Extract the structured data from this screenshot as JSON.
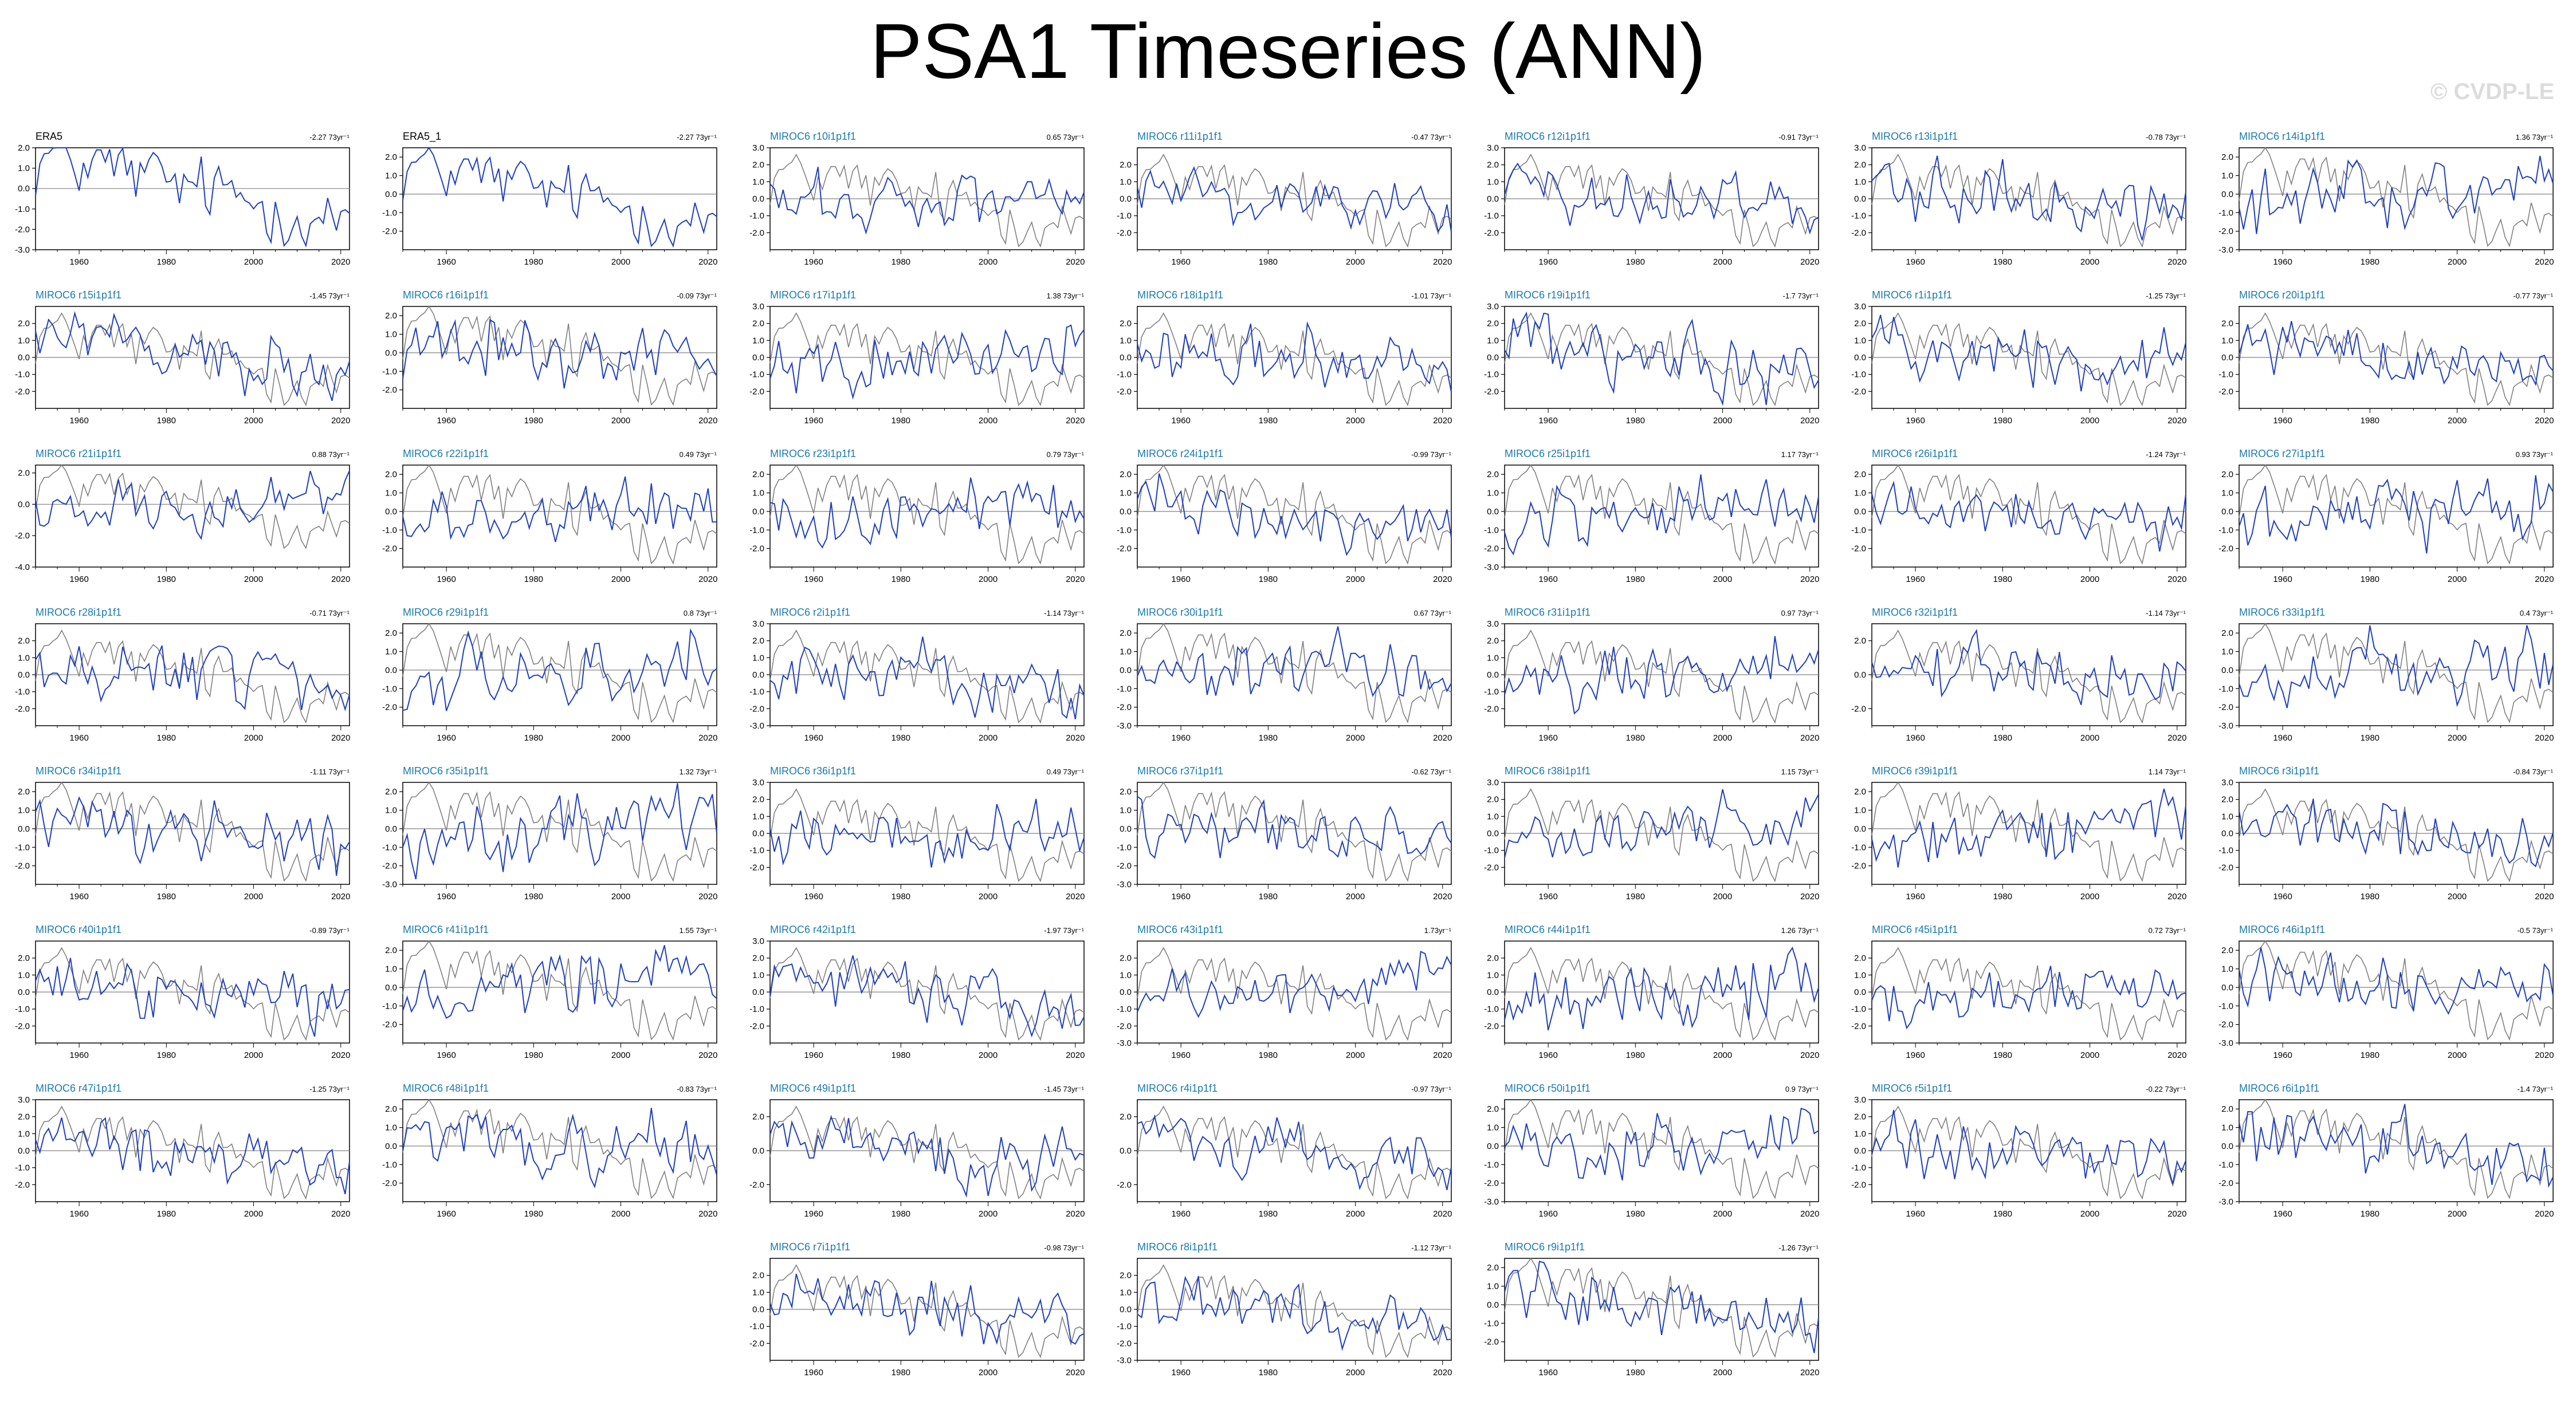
{
  "title": "PSA1 Timeseries (ANN)",
  "watermark": "© CVDP-LE",
  "chart_data": {
    "type": "line",
    "x_ticks": [
      1960,
      1980,
      2000,
      2020
    ],
    "xlim": [
      1950,
      2022
    ],
    "colors": {
      "observation": "#000000",
      "ensemble_member": "#1f3fbf",
      "obs_overlay": "#808080",
      "member_title": "#1a7ab0",
      "zero_line": "#808080"
    },
    "panels": [
      {
        "title": "ERA5",
        "trend": "-2.27 73yr⁻¹",
        "ylim": [
          -3,
          2
        ],
        "yticks": [
          "2.0",
          "1.0",
          "0.0",
          "-1.0",
          "-2.0",
          "-3.0"
        ],
        "obs": true
      },
      {
        "title": "ERA5_1",
        "trend": "-2.27 73yr⁻¹",
        "ylim": [
          -3,
          2.5
        ],
        "yticks": [
          "2.0",
          "1.0",
          "0.0",
          "-1.0",
          "-2.0"
        ],
        "obs": true
      },
      {
        "title": "MIROC6 r10i1p1f1",
        "trend": "0.65 73yr⁻¹",
        "ylim": [
          -3,
          3
        ],
        "yticks": [
          "3.0",
          "2.0",
          "1.0",
          "0.0",
          "-1.0",
          "-2.0"
        ]
      },
      {
        "title": "MIROC6 r11i1p1f1",
        "trend": "-0.47 73yr⁻¹",
        "ylim": [
          -3,
          3
        ],
        "yticks": [
          "2.0",
          "1.0",
          "0.0",
          "-1.0",
          "-2.0"
        ]
      },
      {
        "title": "MIROC6 r12i1p1f1",
        "trend": "-0.91 73yr⁻¹",
        "ylim": [
          -3,
          3
        ],
        "yticks": [
          "3.0",
          "2.0",
          "1.0",
          "0.0",
          "-1.0",
          "-2.0"
        ]
      },
      {
        "title": "MIROC6 r13i1p1f1",
        "trend": "-0.78 73yr⁻¹",
        "ylim": [
          -3,
          3
        ],
        "yticks": [
          "3.0",
          "2.0",
          "1.0",
          "0.0",
          "-1.0",
          "-2.0"
        ]
      },
      {
        "title": "MIROC6 r14i1p1f1",
        "trend": "1.36 73yr⁻¹",
        "ylim": [
          -3,
          2.5
        ],
        "yticks": [
          "2.0",
          "1.0",
          "0.0",
          "-1.0",
          "-2.0",
          "-3.0"
        ]
      },
      {
        "title": "MIROC6 r15i1p1f1",
        "trend": "-1.45 73yr⁻¹",
        "ylim": [
          -3,
          3
        ],
        "yticks": [
          "2.0",
          "1.0",
          "0.0",
          "-1.0",
          "-2.0"
        ]
      },
      {
        "title": "MIROC6 r16i1p1f1",
        "trend": "-0.09 73yr⁻¹",
        "ylim": [
          -3,
          2.5
        ],
        "yticks": [
          "2.0",
          "1.0",
          "0.0",
          "-1.0",
          "-2.0"
        ]
      },
      {
        "title": "MIROC6 r17i1p1f1",
        "trend": "1.38 73yr⁻¹",
        "ylim": [
          -3,
          3
        ],
        "yticks": [
          "3.0",
          "2.0",
          "1.0",
          "0.0",
          "-1.0",
          "-2.0"
        ]
      },
      {
        "title": "MIROC6 r18i1p1f1",
        "trend": "-1.01 73yr⁻¹",
        "ylim": [
          -3,
          3
        ],
        "yticks": [
          "2.0",
          "1.0",
          "0.0",
          "-1.0",
          "-2.0"
        ]
      },
      {
        "title": "MIROC6 r19i1p1f1",
        "trend": "-1.7 73yr⁻¹",
        "ylim": [
          -3,
          3
        ],
        "yticks": [
          "3.0",
          "2.0",
          "1.0",
          "0.0",
          "-1.0",
          "-2.0"
        ]
      },
      {
        "title": "MIROC6 r1i1p1f1",
        "trend": "-1.25 73yr⁻¹",
        "ylim": [
          -3,
          3
        ],
        "yticks": [
          "3.0",
          "2.0",
          "1.0",
          "0.0",
          "-1.0",
          "-2.0"
        ]
      },
      {
        "title": "MIROC6 r20i1p1f1",
        "trend": "-0.77 73yr⁻¹",
        "ylim": [
          -3,
          3
        ],
        "yticks": [
          "2.0",
          "1.0",
          "0.0",
          "-1.0",
          "-2.0"
        ]
      },
      {
        "title": "MIROC6 r21i1p1f1",
        "trend": "0.88 73yr⁻¹",
        "ylim": [
          -4,
          2.5
        ],
        "yticks": [
          "2.0",
          "0.0",
          "-2.0",
          "-4.0"
        ]
      },
      {
        "title": "MIROC6 r22i1p1f1",
        "trend": "0.49 73yr⁻¹",
        "ylim": [
          -3,
          2.5
        ],
        "yticks": [
          "2.0",
          "1.0",
          "0.0",
          "-1.0",
          "-2.0"
        ]
      },
      {
        "title": "MIROC6 r23i1p1f1",
        "trend": "0.79 73yr⁻¹",
        "ylim": [
          -3,
          2.5
        ],
        "yticks": [
          "2.0",
          "1.0",
          "0.0",
          "-1.0",
          "-2.0"
        ]
      },
      {
        "title": "MIROC6 r24i1p1f1",
        "trend": "-0.99 73yr⁻¹",
        "ylim": [
          -3,
          2.5
        ],
        "yticks": [
          "2.0",
          "1.0",
          "0.0",
          "-1.0",
          "-2.0"
        ]
      },
      {
        "title": "MIROC6 r25i1p1f1",
        "trend": "1.17 73yr⁻¹",
        "ylim": [
          -3,
          2.5
        ],
        "yticks": [
          "2.0",
          "1.0",
          "0.0",
          "-1.0",
          "-2.0",
          "-3.0"
        ]
      },
      {
        "title": "MIROC6 r26i1p1f1",
        "trend": "-1.24 73yr⁻¹",
        "ylim": [
          -3,
          2.5
        ],
        "yticks": [
          "2.0",
          "1.0",
          "0.0",
          "-1.0",
          "-2.0"
        ]
      },
      {
        "title": "MIROC6 r27i1p1f1",
        "trend": "0.93 73yr⁻¹",
        "ylim": [
          -3,
          2.5
        ],
        "yticks": [
          "2.0",
          "1.0",
          "0.0",
          "-1.0",
          "-2.0"
        ]
      },
      {
        "title": "MIROC6 r28i1p1f1",
        "trend": "-0.71 73yr⁻¹",
        "ylim": [
          -3,
          3
        ],
        "yticks": [
          "2.0",
          "1.0",
          "0.0",
          "-1.0",
          "-2.0"
        ]
      },
      {
        "title": "MIROC6 r29i1p1f1",
        "trend": "0.8 73yr⁻¹",
        "ylim": [
          -3,
          2.5
        ],
        "yticks": [
          "2.0",
          "1.0",
          "0.0",
          "-1.0",
          "-2.0"
        ]
      },
      {
        "title": "MIROC6 r2i1p1f1",
        "trend": "-1.14 73yr⁻¹",
        "ylim": [
          -3,
          3
        ],
        "yticks": [
          "3.0",
          "2.0",
          "1.0",
          "0.0",
          "-1.0",
          "-2.0",
          "-3.0"
        ]
      },
      {
        "title": "MIROC6 r30i1p1f1",
        "trend": "0.67 73yr⁻¹",
        "ylim": [
          -3,
          2.5
        ],
        "yticks": [
          "2.0",
          "1.0",
          "0.0",
          "-1.0",
          "-2.0",
          "-3.0"
        ]
      },
      {
        "title": "MIROC6 r31i1p1f1",
        "trend": "0.97 73yr⁻¹",
        "ylim": [
          -3,
          3
        ],
        "yticks": [
          "3.0",
          "2.0",
          "1.0",
          "0.0",
          "-1.0",
          "-2.0"
        ]
      },
      {
        "title": "MIROC6 r32i1p1f1",
        "trend": "-1.14 73yr⁻¹",
        "ylim": [
          -3,
          3
        ],
        "yticks": [
          "2.0",
          "0.0",
          "-2.0"
        ]
      },
      {
        "title": "MIROC6 r33i1p1f1",
        "trend": "0.4 73yr⁻¹",
        "ylim": [
          -3,
          2.5
        ],
        "yticks": [
          "2.0",
          "1.0",
          "0.0",
          "-1.0",
          "-2.0",
          "-3.0"
        ]
      },
      {
        "title": "MIROC6 r34i1p1f1",
        "trend": "-1.11 73yr⁻¹",
        "ylim": [
          -3,
          2.5
        ],
        "yticks": [
          "2.0",
          "1.0",
          "0.0",
          "-1.0",
          "-2.0"
        ]
      },
      {
        "title": "MIROC6 r35i1p1f1",
        "trend": "1.32 73yr⁻¹",
        "ylim": [
          -3,
          2.5
        ],
        "yticks": [
          "2.0",
          "1.0",
          "0.0",
          "-1.0",
          "-2.0",
          "-3.0"
        ]
      },
      {
        "title": "MIROC6 r36i1p1f1",
        "trend": "0.49 73yr⁻¹",
        "ylim": [
          -3,
          3
        ],
        "yticks": [
          "3.0",
          "2.0",
          "1.0",
          "0.0",
          "-1.0",
          "-2.0"
        ]
      },
      {
        "title": "MIROC6 r37i1p1f1",
        "trend": "-0.62 73yr⁻¹",
        "ylim": [
          -3,
          2.5
        ],
        "yticks": [
          "2.0",
          "1.0",
          "0.0",
          "-1.0",
          "-2.0",
          "-3.0"
        ]
      },
      {
        "title": "MIROC6 r38i1p1f1",
        "trend": "1.15 73yr⁻¹",
        "ylim": [
          -3,
          3
        ],
        "yticks": [
          "3.0",
          "2.0",
          "1.0",
          "0.0",
          "-1.0",
          "-2.0"
        ]
      },
      {
        "title": "MIROC6 r39i1p1f1",
        "trend": "1.14 73yr⁻¹",
        "ylim": [
          -3,
          2.5
        ],
        "yticks": [
          "2.0",
          "1.0",
          "0.0",
          "-1.0",
          "-2.0"
        ]
      },
      {
        "title": "MIROC6 r3i1p1f1",
        "trend": "-0.84 73yr⁻¹",
        "ylim": [
          -3,
          3
        ],
        "yticks": [
          "3.0",
          "2.0",
          "1.0",
          "0.0",
          "-1.0",
          "-2.0"
        ]
      },
      {
        "title": "MIROC6 r40i1p1f1",
        "trend": "-0.89 73yr⁻¹",
        "ylim": [
          -3,
          3
        ],
        "yticks": [
          "2.0",
          "1.0",
          "0.0",
          "-1.0",
          "-2.0"
        ]
      },
      {
        "title": "MIROC6 r41i1p1f1",
        "trend": "1.55 73yr⁻¹",
        "ylim": [
          -3,
          2.5
        ],
        "yticks": [
          "2.0",
          "1.0",
          "0.0",
          "-1.0",
          "-2.0"
        ]
      },
      {
        "title": "MIROC6 r42i1p1f1",
        "trend": "-1.97 73yr⁻¹",
        "ylim": [
          -3,
          3
        ],
        "yticks": [
          "3.0",
          "2.0",
          "1.0",
          "0.0",
          "-1.0",
          "-2.0"
        ]
      },
      {
        "title": "MIROC6 r43i1p1f1",
        "trend": "1.73yr⁻¹",
        "ylim": [
          -3,
          3
        ],
        "yticks": [
          "2.0",
          "1.0",
          "0.0",
          "-1.0",
          "-2.0",
          "-3.0"
        ]
      },
      {
        "title": "MIROC6 r44i1p1f1",
        "trend": "1.26 73yr⁻¹",
        "ylim": [
          -3,
          3
        ],
        "yticks": [
          "2.0",
          "1.0",
          "0.0",
          "-1.0",
          "-2.0"
        ]
      },
      {
        "title": "MIROC6 r45i1p1f1",
        "trend": "0.72 73yr⁻¹",
        "ylim": [
          -3,
          3
        ],
        "yticks": [
          "2.0",
          "1.0",
          "0.0",
          "-1.0",
          "-2.0"
        ]
      },
      {
        "title": "MIROC6 r46i1p1f1",
        "trend": "-0.5 73yr⁻¹",
        "ylim": [
          -3,
          2.5
        ],
        "yticks": [
          "2.0",
          "1.0",
          "0.0",
          "-1.0",
          "-2.0",
          "-3.0"
        ]
      },
      {
        "title": "MIROC6 r47i1p1f1",
        "trend": "-1.25 73yr⁻¹",
        "ylim": [
          -3,
          3
        ],
        "yticks": [
          "3.0",
          "2.0",
          "1.0",
          "0.0",
          "-1.0",
          "-2.0"
        ]
      },
      {
        "title": "MIROC6 r48i1p1f1",
        "trend": "-0.83 73yr⁻¹",
        "ylim": [
          -3,
          2.5
        ],
        "yticks": [
          "2.0",
          "1.0",
          "0.0",
          "-1.0",
          "-2.0"
        ]
      },
      {
        "title": "MIROC6 r49i1p1f1",
        "trend": "-1.45 73yr⁻¹",
        "ylim": [
          -3,
          3
        ],
        "yticks": [
          "2.0",
          "0.0",
          "-2.0"
        ]
      },
      {
        "title": "MIROC6 r4i1p1f1",
        "trend": "-0.97 73yr⁻¹",
        "ylim": [
          -3,
          3
        ],
        "yticks": [
          "2.0",
          "0.0",
          "-2.0"
        ]
      },
      {
        "title": "MIROC6 r50i1p1f1",
        "trend": "0.9 73yr⁻¹",
        "ylim": [
          -3,
          2.5
        ],
        "yticks": [
          "2.0",
          "1.0",
          "0.0",
          "-1.0",
          "-2.0",
          "-3.0"
        ]
      },
      {
        "title": "MIROC6 r5i1p1f1",
        "trend": "-0.22 73yr⁻¹",
        "ylim": [
          -3,
          3
        ],
        "yticks": [
          "3.0",
          "2.0",
          "1.0",
          "0.0",
          "-1.0",
          "-2.0"
        ]
      },
      {
        "title": "MIROC6 r6i1p1f1",
        "trend": "-1.4 73yr⁻¹",
        "ylim": [
          -3,
          2.5
        ],
        "yticks": [
          "2.0",
          "1.0",
          "0.0",
          "-1.0",
          "-2.0",
          "-3.0"
        ]
      },
      {
        "title": "MIROC6 r7i1p1f1",
        "trend": "-0.98 73yr⁻¹",
        "ylim": [
          -3,
          3
        ],
        "yticks": [
          "2.0",
          "1.0",
          "0.0",
          "-1.0",
          "-2.0"
        ]
      },
      {
        "title": "MIROC6 r8i1p1f1",
        "trend": "-1.12 73yr⁻¹",
        "ylim": [
          -3,
          3
        ],
        "yticks": [
          "2.0",
          "1.0",
          "0.0",
          "-1.0",
          "-2.0",
          "-3.0"
        ]
      },
      {
        "title": "MIROC6 r9i1p1f1",
        "trend": "-1.26 73yr⁻¹",
        "ylim": [
          -3,
          2.5
        ],
        "yticks": [
          "2.0",
          "1.0",
          "0.0",
          "-1.0",
          "-2.0"
        ]
      }
    ]
  }
}
